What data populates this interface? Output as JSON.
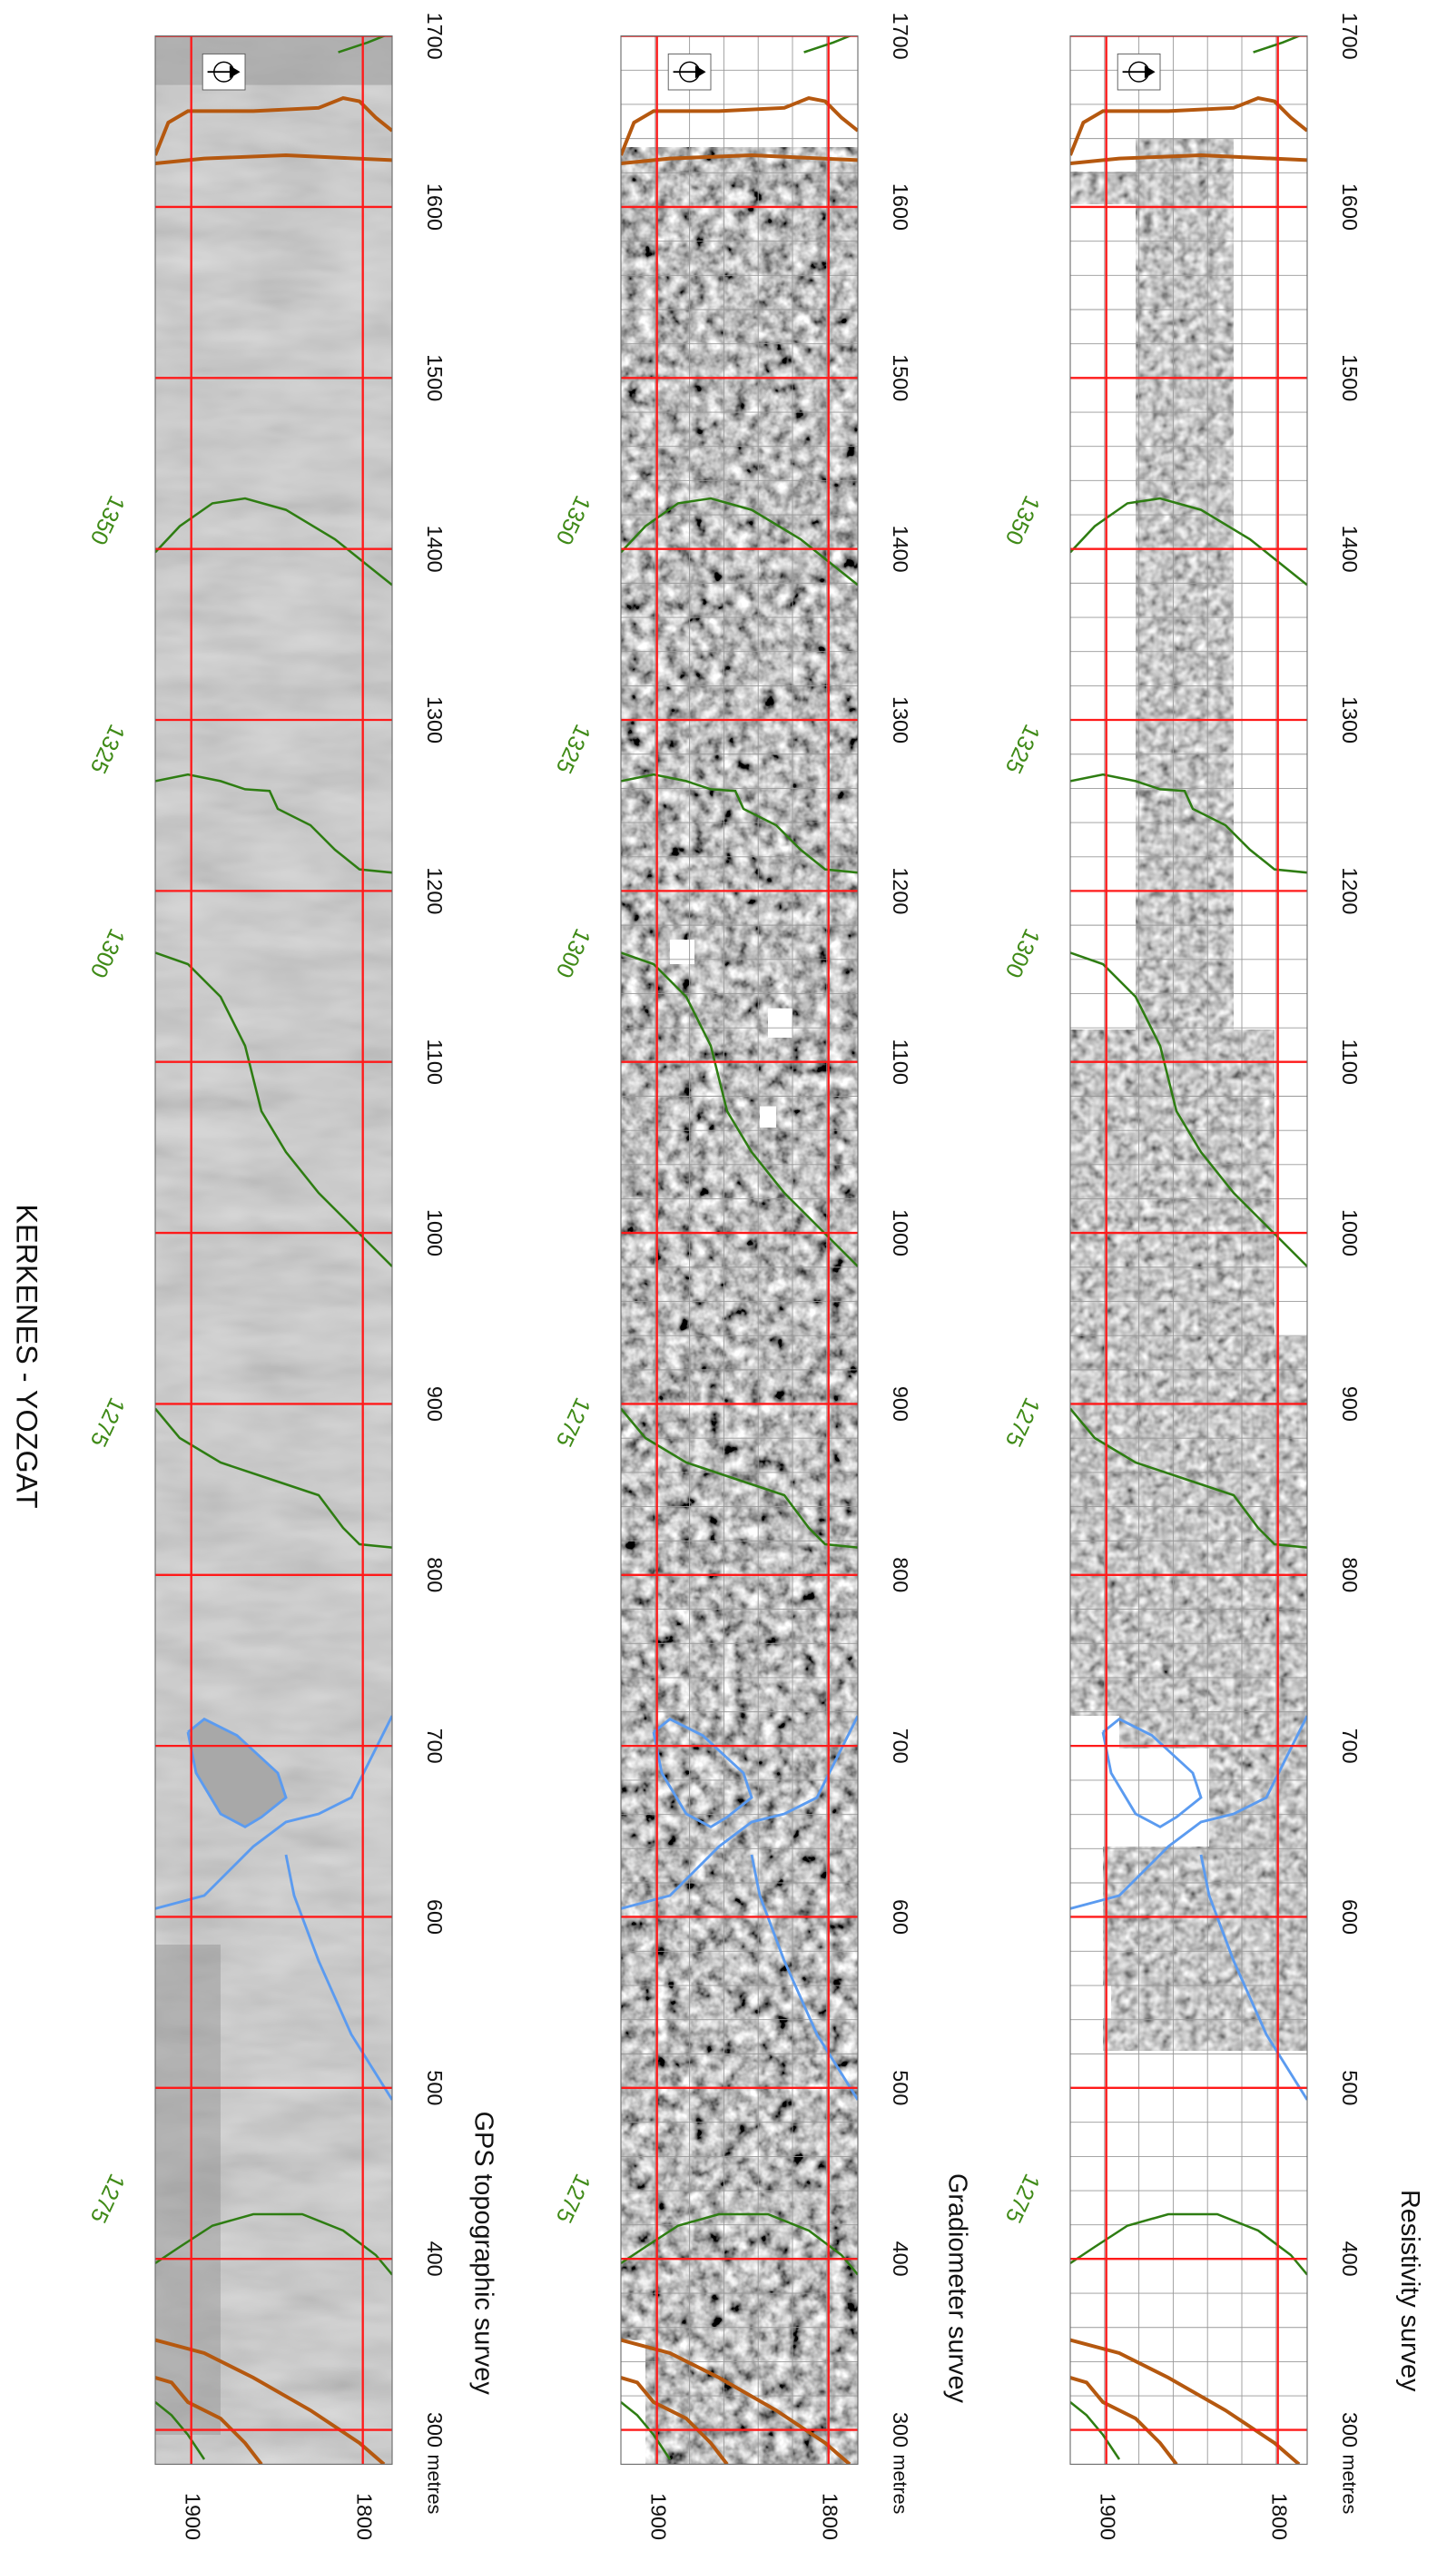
{
  "title": "KERKENES - YOZGAT",
  "panels": [
    {
      "caption": "GPS topographic survey"
    },
    {
      "caption": "Gradiometer survey"
    },
    {
      "caption": "Resistivity survey"
    }
  ],
  "axes": {
    "x_ticks": [
      1700,
      1600,
      1500,
      1400,
      1300,
      1200,
      1100,
      1000,
      900,
      800,
      700,
      600,
      500,
      400,
      300
    ],
    "x_unit": "metres",
    "y_ticks": [
      1900,
      1800
    ]
  },
  "contour_labels": [
    "1350",
    "1325",
    "1300",
    "1275",
    "1275"
  ]
}
